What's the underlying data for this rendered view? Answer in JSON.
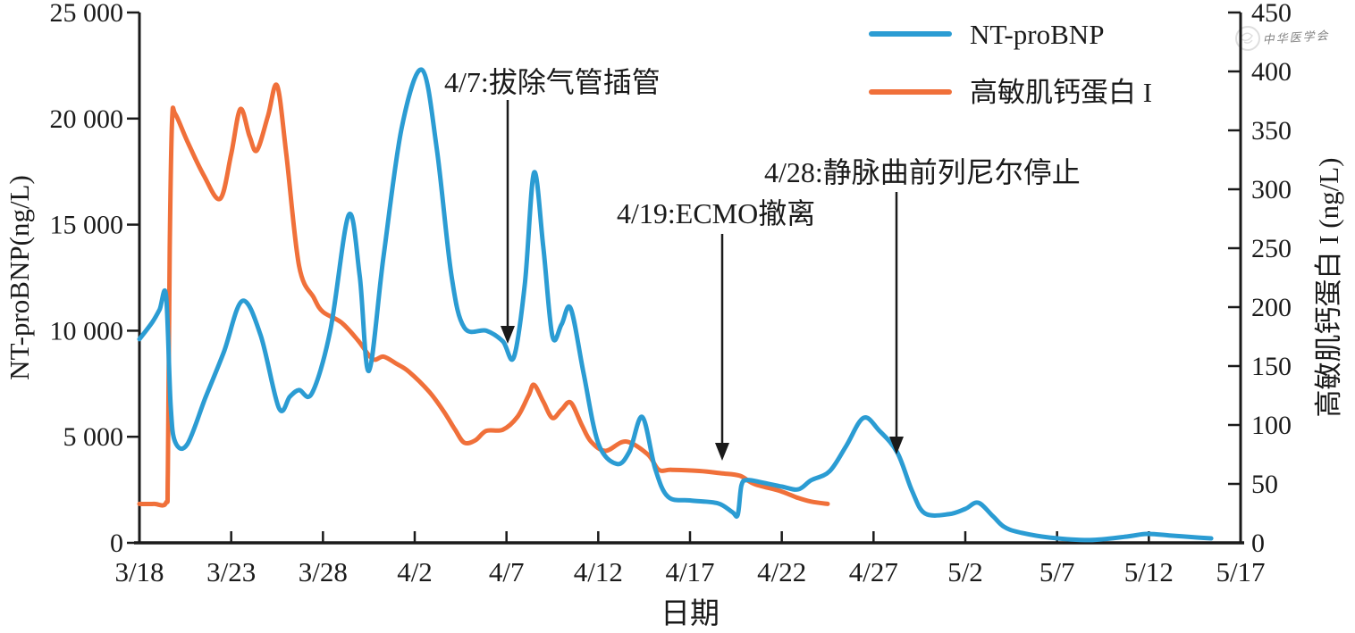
{
  "page": {
    "background": "#ffffff",
    "foreground": "#1a1a1a"
  },
  "watermark": {
    "text": "中华医学会"
  },
  "chart_data": {
    "type": "line",
    "title": "",
    "xlabel": "日期",
    "x_tick_labels": [
      "3/18",
      "3/23",
      "3/28",
      "4/2",
      "4/7",
      "4/12",
      "4/17",
      "4/22",
      "4/27",
      "5/2",
      "5/7",
      "5/12",
      "5/17"
    ],
    "x_tick_step_days": 5,
    "x_range_days": [
      0,
      60
    ],
    "left_axis": {
      "label": "NT-proBNP(ng/L)",
      "min": 0,
      "max": 25000,
      "tick_labels": [
        "0",
        "5 000",
        "10 000",
        "15 000",
        "20 000",
        "25 000"
      ]
    },
    "right_axis": {
      "label": "高敏肌钙蛋白 I (ng/L)",
      "min": 0,
      "max": 450,
      "tick_labels": [
        "0",
        "50",
        "100",
        "150",
        "200",
        "250",
        "300",
        "350",
        "400",
        "450"
      ]
    },
    "grid": false,
    "legend": {
      "position": "top-right"
    },
    "series": [
      {
        "name": "NT-proBNP",
        "color": "#2b9cd3",
        "axis": "left",
        "x_unit": "days_since_3/18",
        "points": [
          [
            0,
            9600
          ],
          [
            0.7,
            10400
          ],
          [
            1.1,
            11000
          ],
          [
            1.45,
            11650
          ],
          [
            1.7,
            6500
          ],
          [
            1.95,
            4750
          ],
          [
            2.6,
            4640
          ],
          [
            3.6,
            6850
          ],
          [
            4.6,
            9000
          ],
          [
            5.6,
            11400
          ],
          [
            6.6,
            9800
          ],
          [
            7.6,
            6350
          ],
          [
            8.2,
            6900
          ],
          [
            8.7,
            7200
          ],
          [
            9.4,
            7050
          ],
          [
            10.4,
            10000
          ],
          [
            11.4,
            15450
          ],
          [
            12.0,
            12600
          ],
          [
            12.5,
            8100
          ],
          [
            13.3,
            13500
          ],
          [
            14.3,
            19600
          ],
          [
            15.4,
            22300
          ],
          [
            16.2,
            18600
          ],
          [
            17.0,
            12600
          ],
          [
            17.7,
            10150
          ],
          [
            18.9,
            10000
          ],
          [
            19.8,
            9500
          ],
          [
            20.4,
            8750
          ],
          [
            21.0,
            12200
          ],
          [
            21.5,
            17450
          ],
          [
            22.0,
            14000
          ],
          [
            22.5,
            9750
          ],
          [
            23.0,
            10300
          ],
          [
            23.5,
            11050
          ],
          [
            24.2,
            8000
          ],
          [
            25.0,
            4700
          ],
          [
            26.0,
            3720
          ],
          [
            26.7,
            4300
          ],
          [
            27.4,
            5930
          ],
          [
            28.1,
            3500
          ],
          [
            28.8,
            2170
          ],
          [
            30.0,
            2000
          ],
          [
            31.5,
            1870
          ],
          [
            32.3,
            1450
          ],
          [
            32.6,
            1320
          ],
          [
            32.8,
            2700
          ],
          [
            33.1,
            2960
          ],
          [
            33.9,
            2850
          ],
          [
            35.0,
            2650
          ],
          [
            35.9,
            2520
          ],
          [
            36.6,
            2950
          ],
          [
            37.6,
            3370
          ],
          [
            38.5,
            4550
          ],
          [
            39.45,
            5890
          ],
          [
            40.3,
            5300
          ],
          [
            41.3,
            4250
          ],
          [
            42.1,
            2440
          ],
          [
            42.8,
            1390
          ],
          [
            44.1,
            1350
          ],
          [
            45.0,
            1600
          ],
          [
            45.7,
            1890
          ],
          [
            46.5,
            1260
          ],
          [
            47.1,
            760
          ],
          [
            47.9,
            505
          ],
          [
            49.6,
            250
          ],
          [
            51.8,
            130
          ],
          [
            53.8,
            295
          ],
          [
            54.9,
            420
          ],
          [
            56.2,
            340
          ],
          [
            57.7,
            250
          ],
          [
            58.4,
            210
          ]
        ]
      },
      {
        "name": "高敏肌钙蛋白 I",
        "color": "#f0703a",
        "axis": "right",
        "x_unit": "days_since_3/18",
        "points": [
          [
            0,
            33
          ],
          [
            0.8,
            33
          ],
          [
            1.45,
            34
          ],
          [
            1.55,
            60
          ],
          [
            1.65,
            250
          ],
          [
            1.78,
            358
          ],
          [
            1.95,
            364
          ],
          [
            2.6,
            341
          ],
          [
            3.5,
            312
          ],
          [
            4.4,
            292
          ],
          [
            5.0,
            330
          ],
          [
            5.5,
            368
          ],
          [
            6.0,
            345
          ],
          [
            6.4,
            333
          ],
          [
            7.0,
            362
          ],
          [
            7.5,
            388
          ],
          [
            8.0,
            330
          ],
          [
            8.7,
            235
          ],
          [
            9.5,
            208
          ],
          [
            10.0,
            196
          ],
          [
            11.0,
            187
          ],
          [
            11.9,
            172
          ],
          [
            12.7,
            156
          ],
          [
            13.3,
            158
          ],
          [
            14.0,
            152
          ],
          [
            14.7,
            145
          ],
          [
            15.8,
            128
          ],
          [
            16.6,
            111
          ],
          [
            17.2,
            96
          ],
          [
            17.7,
            85
          ],
          [
            18.3,
            87
          ],
          [
            18.9,
            95
          ],
          [
            19.8,
            96
          ],
          [
            20.6,
            107
          ],
          [
            21.2,
            125
          ],
          [
            21.5,
            134
          ],
          [
            22.0,
            120
          ],
          [
            22.5,
            106
          ],
          [
            23.0,
            113
          ],
          [
            23.5,
            119
          ],
          [
            24.1,
            100
          ],
          [
            24.6,
            86
          ],
          [
            25.4,
            78
          ],
          [
            26.5,
            86
          ],
          [
            27.7,
            75
          ],
          [
            28.3,
            62
          ],
          [
            29.0,
            62
          ],
          [
            30.5,
            61
          ],
          [
            31.7,
            59
          ],
          [
            32.7,
            57
          ],
          [
            33.5,
            50
          ],
          [
            34.9,
            44
          ],
          [
            35.9,
            38
          ],
          [
            36.6,
            35
          ],
          [
            37.5,
            33
          ]
        ]
      }
    ],
    "annotations": [
      {
        "date": "4/7",
        "text": "4/7:拔除气管插管"
      },
      {
        "date": "4/19",
        "text": "4/19:ECMO撤离"
      },
      {
        "date": "4/28",
        "text": "4/28:静脉曲前列尼尔停止"
      }
    ]
  }
}
